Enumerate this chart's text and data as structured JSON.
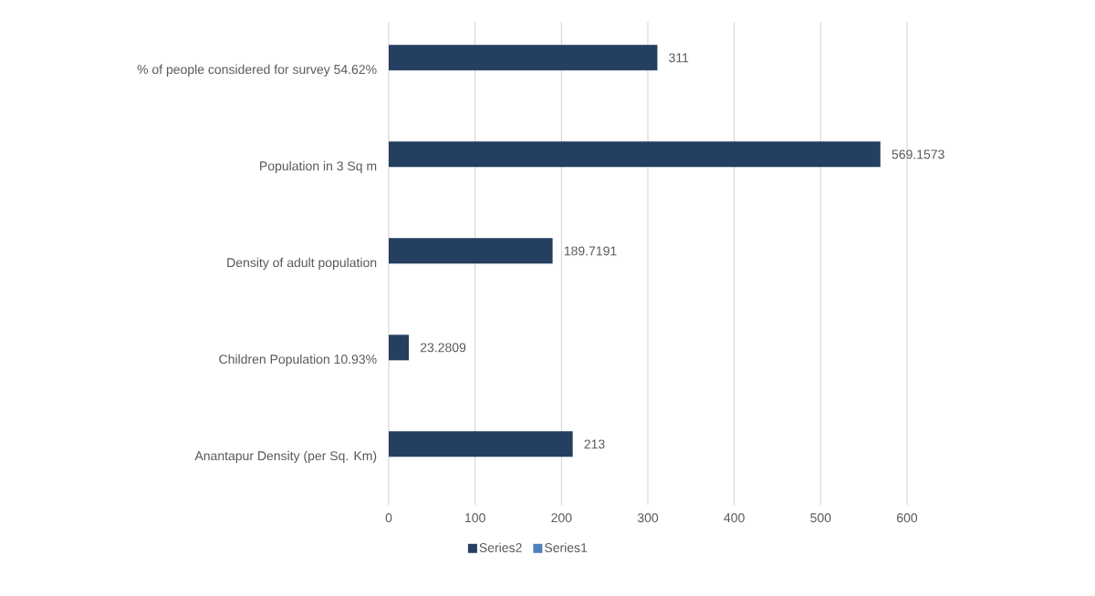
{
  "chart_data": {
    "type": "bar",
    "orientation": "horizontal",
    "categories": [
      "% of people considered for survey 54.62%",
      "Population in 3 Sq m",
      "Density of adult population",
      "Children Population  10.93%",
      "Anantapur Density (per Sq. Km)"
    ],
    "series": [
      {
        "name": "Series2",
        "color": "#243f60",
        "values": [
          311,
          569.1573,
          189.7191,
          23.2809,
          213
        ]
      },
      {
        "name": "Series1",
        "color": "#4f81bd",
        "values": [
          null,
          null,
          null,
          null,
          null
        ]
      }
    ],
    "xlim": [
      0,
      600
    ],
    "xticks": [
      0,
      100,
      200,
      300,
      400,
      500,
      600
    ],
    "grid": "x",
    "legend": "bottom",
    "data_labels": true
  }
}
